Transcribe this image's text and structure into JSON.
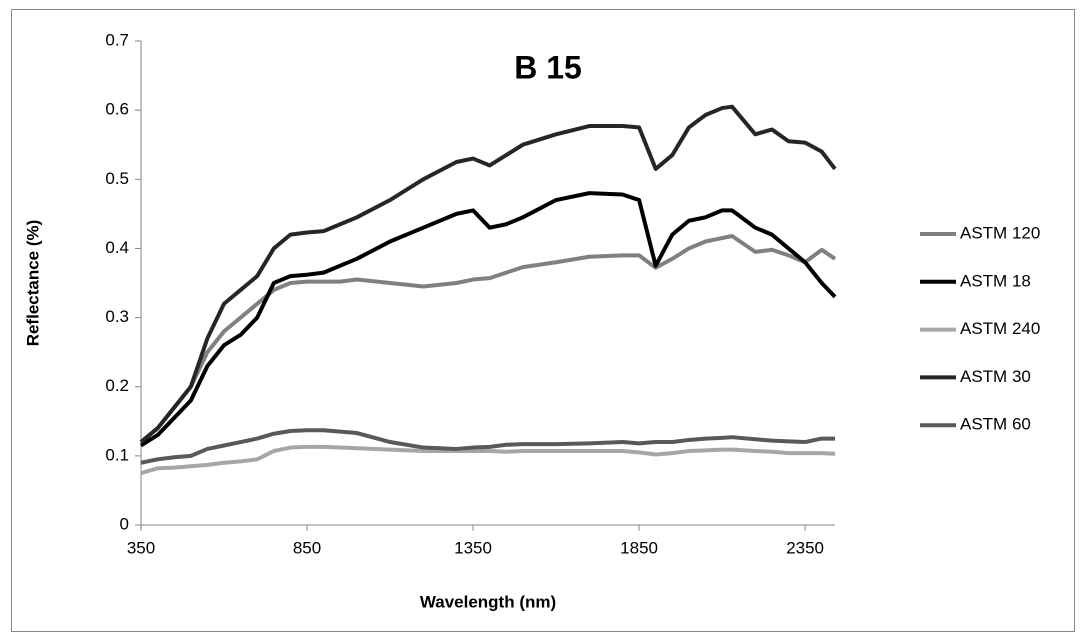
{
  "chart_data": {
    "type": "line",
    "title": "B 15",
    "x_label": "Wavelength (nm)",
    "y_label": "Reflectance (%)",
    "x": [
      350,
      400,
      450,
      500,
      550,
      600,
      650,
      700,
      750,
      800,
      850,
      900,
      950,
      1000,
      1100,
      1200,
      1300,
      1350,
      1400,
      1450,
      1500,
      1600,
      1700,
      1800,
      1850,
      1900,
      1950,
      2000,
      2050,
      2100,
      2130,
      2200,
      2250,
      2300,
      2350,
      2400,
      2440
    ],
    "series": [
      {
        "name": "ASTM 120",
        "color": "#808080",
        "values": [
          0.12,
          0.14,
          0.17,
          0.2,
          0.25,
          0.28,
          0.3,
          0.32,
          0.34,
          0.35,
          0.352,
          0.352,
          0.352,
          0.355,
          0.35,
          0.345,
          0.35,
          0.355,
          0.357,
          0.365,
          0.373,
          0.38,
          0.388,
          0.39,
          0.39,
          0.372,
          0.385,
          0.4,
          0.41,
          0.415,
          0.418,
          0.395,
          0.398,
          0.39,
          0.38,
          0.398,
          0.385
        ]
      },
      {
        "name": "ASTM 18",
        "color": "#000000",
        "values": [
          0.115,
          0.13,
          0.155,
          0.18,
          0.23,
          0.26,
          0.275,
          0.3,
          0.35,
          0.36,
          0.362,
          0.365,
          0.375,
          0.385,
          0.41,
          0.43,
          0.45,
          0.455,
          0.43,
          0.435,
          0.445,
          0.47,
          0.48,
          0.478,
          0.47,
          0.375,
          0.42,
          0.44,
          0.445,
          0.455,
          0.455,
          0.43,
          0.42,
          0.4,
          0.38,
          0.35,
          0.33
        ]
      },
      {
        "name": "ASTM 240",
        "color": "#a6a6a6",
        "values": [
          0.075,
          0.082,
          0.083,
          0.085,
          0.087,
          0.09,
          0.092,
          0.095,
          0.107,
          0.112,
          0.113,
          0.113,
          0.112,
          0.111,
          0.109,
          0.107,
          0.107,
          0.107,
          0.107,
          0.106,
          0.107,
          0.107,
          0.107,
          0.107,
          0.105,
          0.102,
          0.104,
          0.107,
          0.108,
          0.109,
          0.109,
          0.107,
          0.106,
          0.104,
          0.104,
          0.104,
          0.103
        ]
      },
      {
        "name": "ASTM 30",
        "color": "#262626",
        "values": [
          0.12,
          0.14,
          0.17,
          0.2,
          0.27,
          0.32,
          0.34,
          0.36,
          0.4,
          0.42,
          0.423,
          0.425,
          0.435,
          0.445,
          0.47,
          0.5,
          0.525,
          0.53,
          0.52,
          0.535,
          0.55,
          0.565,
          0.577,
          0.577,
          0.575,
          0.515,
          0.535,
          0.575,
          0.593,
          0.603,
          0.605,
          0.565,
          0.572,
          0.555,
          0.553,
          0.54,
          0.515
        ]
      },
      {
        "name": "ASTM 60",
        "color": "#595959",
        "values": [
          0.09,
          0.095,
          0.098,
          0.1,
          0.11,
          0.115,
          0.12,
          0.125,
          0.132,
          0.136,
          0.137,
          0.137,
          0.135,
          0.133,
          0.12,
          0.112,
          0.11,
          0.112,
          0.113,
          0.116,
          0.117,
          0.117,
          0.118,
          0.12,
          0.118,
          0.12,
          0.12,
          0.123,
          0.125,
          0.126,
          0.127,
          0.124,
          0.122,
          0.121,
          0.12,
          0.125,
          0.125
        ]
      }
    ],
    "xlim": [
      350,
      2440
    ],
    "xticks": [
      350,
      850,
      1350,
      1850,
      2350
    ],
    "ylim": [
      0,
      0.7
    ],
    "yticks": [
      0,
      0.1,
      0.2,
      0.3,
      0.4,
      0.5,
      0.6,
      0.7
    ],
    "legend": "right"
  }
}
